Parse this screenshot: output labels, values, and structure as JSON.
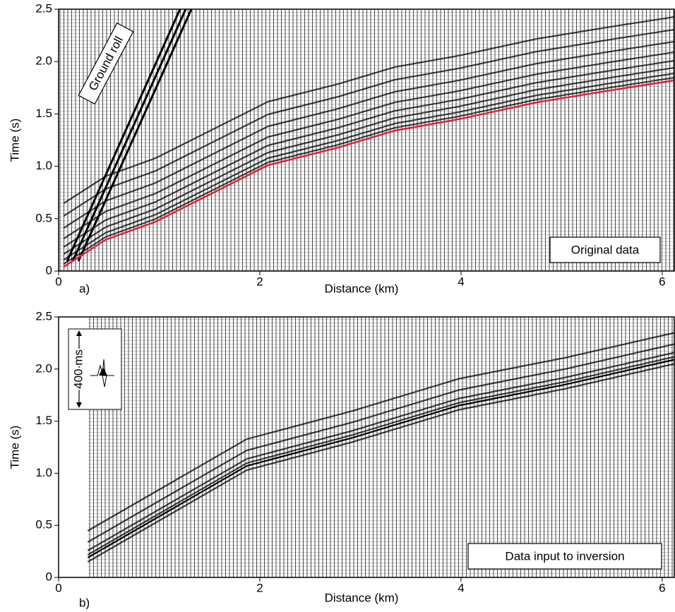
{
  "chart_data": [
    {
      "type": "seismic",
      "panel_label": "a)",
      "annotation": "Original data",
      "event_label": "Ground roll",
      "xlabel": "Distance (km)",
      "ylabel": "Time (s)",
      "xlim": [
        0,
        6.12
      ],
      "ylim": [
        0,
        2.5
      ],
      "xticks": [
        0,
        2,
        4,
        6
      ],
      "yticks": [
        0,
        0.5,
        {
          "value": 1,
          "label": "1.0"
        },
        1.5,
        {
          "value": 2,
          "label": "2.0"
        },
        2.5
      ],
      "pick": {
        "color": "#e0203a",
        "x": [
          0.05,
          0.47,
          0.96,
          1.52,
          2.08,
          2.78,
          3.34,
          3.98,
          4.75,
          5.45,
          6.12
        ],
        "values": [
          0.04,
          0.3,
          0.47,
          0.74,
          1.01,
          1.18,
          1.34,
          1.45,
          1.61,
          1.72,
          1.82
        ]
      }
    },
    {
      "type": "seismic",
      "panel_label": "b)",
      "annotation": "Data input to inversion",
      "scale_label": "400 ms",
      "xlabel": "Distance (km)",
      "ylabel": "Time (s)",
      "xlim": [
        0,
        6.12
      ],
      "ylim": [
        0,
        2.5
      ],
      "xticks": [
        0,
        2,
        4,
        6
      ],
      "yticks": [
        0,
        0.5,
        {
          "value": 1,
          "label": "1.0"
        },
        1.5,
        {
          "value": 2,
          "label": "2.0"
        },
        2.5
      ],
      "pick": {
        "color": "#000000",
        "x": [
          0.29,
          1.87,
          2.92,
          3.98,
          5.03,
          6.12
        ],
        "values": [
          0.19,
          1.07,
          1.34,
          1.65,
          1.85,
          2.09
        ]
      }
    }
  ]
}
